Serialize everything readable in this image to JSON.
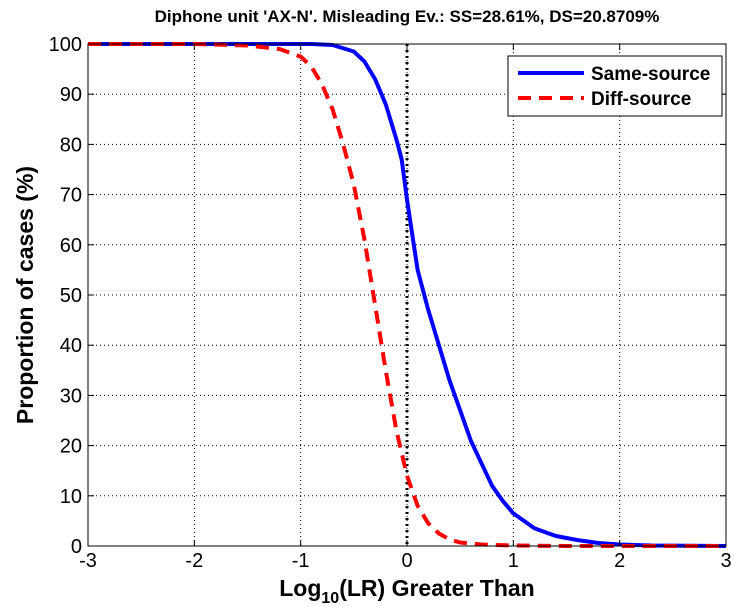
{
  "chart_data": {
    "type": "line",
    "title": "Diphone unit 'AX-N'. Misleading Ev.: SS=28.61%, DS=20.8709%",
    "xlabel_base": "Log",
    "xlabel_sub": "10",
    "xlabel_rest": "(LR) Greater Than",
    "ylabel": "Proportion of cases (%)",
    "xlim": [
      -3,
      3
    ],
    "ylim": [
      0,
      100
    ],
    "xticks": [
      -3,
      -2,
      -1,
      0,
      1,
      2,
      3
    ],
    "yticks": [
      0,
      10,
      20,
      30,
      40,
      50,
      60,
      70,
      80,
      90,
      100
    ],
    "xtick_labels": [
      "-3",
      "-2",
      "-1",
      "0",
      "1",
      "2",
      "3"
    ],
    "ytick_labels": [
      "0",
      "10",
      "20",
      "30",
      "40",
      "50",
      "60",
      "70",
      "80",
      "90",
      "100"
    ],
    "grid": true,
    "legend_position": "top-right",
    "reference_line_x": 0,
    "series": [
      {
        "name": "Same-source",
        "color": "#0000ff",
        "style": "solid",
        "x": [
          -3,
          -1.5,
          -0.9,
          -0.7,
          -0.5,
          -0.4,
          -0.3,
          -0.2,
          -0.1,
          -0.05,
          0,
          0.05,
          0.1,
          0.2,
          0.3,
          0.4,
          0.5,
          0.6,
          0.7,
          0.8,
          0.9,
          1.0,
          1.1,
          1.2,
          1.4,
          1.6,
          1.8,
          2.0,
          2.3,
          3
        ],
        "y": [
          100,
          100,
          100,
          99.8,
          98.5,
          96.5,
          93,
          88,
          81,
          77,
          69,
          62,
          55,
          47,
          40,
          33,
          27,
          21,
          16.5,
          12,
          9,
          6.5,
          5,
          3.5,
          2,
          1.2,
          0.6,
          0.3,
          0.1,
          0
        ]
      },
      {
        "name": "Diff-source",
        "color": "#ff0000",
        "style": "dashed",
        "x": [
          -3,
          -2,
          -1.5,
          -1.2,
          -1.0,
          -0.9,
          -0.8,
          -0.7,
          -0.6,
          -0.5,
          -0.4,
          -0.3,
          -0.2,
          -0.1,
          0,
          0.1,
          0.2,
          0.3,
          0.4,
          0.5,
          0.7,
          1.0,
          1.5,
          3
        ],
        "y": [
          100,
          100,
          99.7,
          99,
          97.5,
          95.5,
          92,
          87,
          80,
          72,
          61,
          48,
          35,
          23,
          14,
          8,
          4.5,
          2.5,
          1.3,
          0.7,
          0.3,
          0.1,
          0,
          0
        ]
      }
    ]
  }
}
